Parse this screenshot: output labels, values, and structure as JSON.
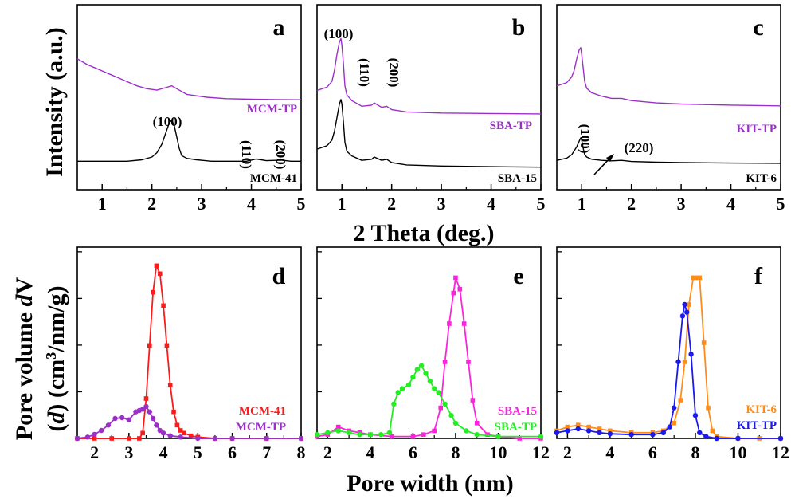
{
  "figure": {
    "y_title_top": "Intensity (a.u.)",
    "x_title_top": "2 Theta (deg.)",
    "y_title_bottom_line1_part1": "Pore volume ",
    "y_title_bottom_line1_part2": "d",
    "y_title_bottom_line1_part3": "V",
    "y_title_bottom_line2_part1": "(",
    "y_title_bottom_line2_part2": "d",
    "y_title_bottom_line2_part3": ") (cm",
    "y_title_bottom_line2_part4": "3",
    "y_title_bottom_line2_part5": "/nm/g)",
    "x_title_bottom": "Pore width (nm)"
  },
  "colors": {
    "black": "#000000",
    "purple": "#9b30c9",
    "red": "#ff1a1a",
    "magenta": "#ff22dd",
    "green": "#22ee22",
    "orange": "#ff8c1a",
    "blue": "#1a1aee"
  },
  "chart_data": [
    {
      "id": "a",
      "panel_label": "a",
      "type": "line",
      "xlim": [
        0.5,
        5
      ],
      "xticks": [
        "1",
        "2",
        "3",
        "4",
        "5"
      ],
      "series": [
        {
          "name": "MCM-TP",
          "color": "purple",
          "x": [
            0.5,
            0.7,
            0.9,
            1.1,
            1.3,
            1.5,
            1.7,
            1.9,
            2.1,
            2.3,
            2.4,
            2.5,
            2.7,
            2.9,
            3.1,
            3.5,
            4.0,
            4.5,
            5.0
          ],
          "y": [
            4.6,
            4.4,
            4.25,
            4.1,
            3.95,
            3.8,
            3.65,
            3.55,
            3.5,
            3.6,
            3.65,
            3.55,
            3.35,
            3.3,
            3.25,
            3.2,
            3.18,
            3.17,
            3.16
          ]
        },
        {
          "name": "MCM-41",
          "color": "black",
          "x": [
            0.5,
            1.0,
            1.5,
            1.8,
            2.0,
            2.1,
            2.2,
            2.3,
            2.35,
            2.4,
            2.45,
            2.5,
            2.55,
            2.6,
            2.7,
            2.9,
            3.2,
            3.6,
            3.9,
            4.1,
            4.3,
            4.6,
            4.8,
            5.0
          ],
          "y": [
            1.0,
            1.0,
            1.0,
            1.05,
            1.15,
            1.3,
            1.6,
            2.1,
            2.35,
            2.45,
            2.25,
            1.85,
            1.45,
            1.2,
            1.1,
            1.05,
            1.0,
            1.0,
            1.0,
            1.08,
            1.02,
            1.04,
            1.0,
            1.0
          ]
        }
      ],
      "ylim": [
        0,
        6.5
      ],
      "annotations": [
        "(100)",
        "(110)",
        "(200)"
      ]
    },
    {
      "id": "b",
      "panel_label": "b",
      "type": "line",
      "xlim": [
        0.5,
        5
      ],
      "xticks": [
        "1",
        "2",
        "3",
        "4",
        "5"
      ],
      "series": [
        {
          "name": "SBA-TP",
          "color": "purple",
          "x": [
            0.5,
            0.7,
            0.8,
            0.85,
            0.9,
            0.95,
            0.98,
            1.0,
            1.03,
            1.06,
            1.1,
            1.2,
            1.4,
            1.6,
            1.65,
            1.8,
            1.9,
            2.0,
            2.3,
            3.0,
            4.0,
            5.0
          ],
          "y": [
            4.4,
            4.55,
            4.8,
            5.3,
            6.0,
            6.55,
            6.7,
            6.4,
            5.6,
            4.6,
            4.2,
            3.95,
            3.7,
            3.75,
            3.85,
            3.65,
            3.7,
            3.55,
            3.45,
            3.4,
            3.38,
            3.36
          ]
        },
        {
          "name": "SBA-15",
          "color": "black",
          "x": [
            0.5,
            0.7,
            0.8,
            0.85,
            0.9,
            0.95,
            0.98,
            1.0,
            1.03,
            1.06,
            1.1,
            1.2,
            1.4,
            1.6,
            1.65,
            1.8,
            1.9,
            2.0,
            2.3,
            3.0,
            4.0,
            5.0
          ],
          "y": [
            1.8,
            1.95,
            2.2,
            2.6,
            3.2,
            3.8,
            4.0,
            3.8,
            3.0,
            2.1,
            1.7,
            1.5,
            1.3,
            1.35,
            1.45,
            1.3,
            1.35,
            1.2,
            1.1,
            1.05,
            1.02,
            1.0
          ]
        }
      ],
      "ylim": [
        0,
        8.2
      ],
      "annotations": [
        "(100)",
        "(110)",
        "(200)"
      ]
    },
    {
      "id": "c",
      "panel_label": "c",
      "type": "line",
      "xlim": [
        0.5,
        5
      ],
      "xticks": [
        "1",
        "2",
        "3",
        "4",
        "5"
      ],
      "series": [
        {
          "name": "KIT-TP",
          "color": "purple",
          "x": [
            0.5,
            0.7,
            0.8,
            0.85,
            0.9,
            0.95,
            0.98,
            1.0,
            1.03,
            1.06,
            1.1,
            1.2,
            1.4,
            1.6,
            1.8,
            2.0,
            2.5,
            3.0,
            4.0,
            5.0
          ],
          "y": [
            4.6,
            4.75,
            5.0,
            5.3,
            5.8,
            6.2,
            6.3,
            6.0,
            5.4,
            4.8,
            4.5,
            4.3,
            4.15,
            4.05,
            4.05,
            3.95,
            3.85,
            3.8,
            3.75,
            3.72
          ]
        },
        {
          "name": "KIT-6",
          "color": "black",
          "x": [
            0.5,
            0.7,
            0.8,
            0.9,
            0.95,
            0.98,
            1.0,
            1.03,
            1.06,
            1.1,
            1.2,
            1.4,
            1.6,
            1.8,
            2.0,
            2.5,
            3.0,
            4.0,
            5.0
          ],
          "y": [
            1.3,
            1.4,
            1.55,
            1.9,
            2.15,
            2.3,
            2.2,
            1.85,
            1.55,
            1.45,
            1.35,
            1.3,
            1.28,
            1.3,
            1.25,
            1.22,
            1.2,
            1.18,
            1.17
          ]
        }
      ],
      "ylim": [
        0,
        8.2
      ],
      "annotations": [
        "(100)",
        "(220)"
      ]
    },
    {
      "id": "d",
      "panel_label": "d",
      "type": "line",
      "xlim": [
        1.5,
        8
      ],
      "xticks": [
        "2",
        "3",
        "4",
        "5",
        "6",
        "7",
        "8"
      ],
      "series": [
        {
          "name": "MCM-41",
          "color": "red",
          "x": [
            1.5,
            2.0,
            2.5,
            3.0,
            3.3,
            3.4,
            3.5,
            3.6,
            3.7,
            3.8,
            3.9,
            4.0,
            4.1,
            4.2,
            4.3,
            4.4,
            4.5,
            4.6,
            4.8,
            5.0,
            5.5,
            6.0,
            7.0,
            8.0
          ],
          "y": [
            0,
            0,
            0,
            0,
            0,
            0.2,
            1.5,
            3.5,
            5.5,
            6.5,
            6.2,
            5.0,
            3.5,
            2.0,
            1.0,
            0.5,
            0.3,
            0.2,
            0.1,
            0.05,
            0,
            0,
            0,
            0
          ]
        },
        {
          "name": "MCM-TP",
          "color": "purple",
          "x": [
            1.5,
            1.8,
            2.0,
            2.2,
            2.4,
            2.6,
            2.8,
            3.0,
            3.2,
            3.3,
            3.4,
            3.5,
            3.6,
            3.7,
            3.8,
            3.9,
            4.0,
            4.2,
            4.5,
            5.0,
            5.5,
            6.0,
            7.0,
            8.0
          ],
          "y": [
            0,
            0.05,
            0.15,
            0.3,
            0.5,
            0.75,
            0.78,
            0.7,
            1.0,
            1.05,
            1.1,
            1.2,
            1.0,
            0.75,
            0.5,
            0.3,
            0.2,
            0.1,
            0.05,
            0,
            0,
            0,
            0,
            0
          ]
        }
      ],
      "ylim": [
        0,
        7.2
      ]
    },
    {
      "id": "e",
      "panel_label": "e",
      "type": "line",
      "xlim": [
        1.5,
        12
      ],
      "xticks": [
        "2",
        "4",
        "6",
        "8",
        "10",
        "12"
      ],
      "series": [
        {
          "name": "SBA-15",
          "color": "magenta",
          "x": [
            1.5,
            2.0,
            2.5,
            3.0,
            3.5,
            4.0,
            5.0,
            6.0,
            6.5,
            7.0,
            7.3,
            7.5,
            7.7,
            7.9,
            8.0,
            8.2,
            8.4,
            8.6,
            8.8,
            9.0,
            9.5,
            10.0,
            11.0,
            12.0
          ],
          "y": [
            0.05,
            0.1,
            0.3,
            0.2,
            0.15,
            0.1,
            0.05,
            0.05,
            0.1,
            0.2,
            0.8,
            2.0,
            3.0,
            3.8,
            4.2,
            3.9,
            3.0,
            2.0,
            1.0,
            0.4,
            0.1,
            0.05,
            0,
            0
          ]
        },
        {
          "name": "SBA-TP",
          "color": "green",
          "x": [
            1.5,
            2.0,
            2.5,
            3.0,
            3.5,
            4.0,
            4.5,
            4.9,
            5.1,
            5.3,
            5.5,
            5.8,
            6.0,
            6.2,
            6.4,
            6.6,
            6.8,
            7.0,
            7.2,
            7.5,
            7.8,
            8.0,
            8.5,
            9.0,
            10.0,
            12.0
          ],
          "y": [
            0.1,
            0.15,
            0.2,
            0.15,
            0.1,
            0.1,
            0.1,
            0.15,
            0.9,
            1.2,
            1.3,
            1.4,
            1.6,
            1.8,
            1.9,
            1.7,
            1.5,
            1.3,
            1.2,
            0.9,
            0.6,
            0.4,
            0.2,
            0.1,
            0.05,
            0.05
          ]
        }
      ],
      "ylim": [
        0,
        5.0
      ]
    },
    {
      "id": "f",
      "panel_label": "f",
      "type": "line",
      "xlim": [
        1.5,
        12
      ],
      "xticks": [
        "2",
        "4",
        "6",
        "8",
        "10",
        "12"
      ],
      "series": [
        {
          "name": "KIT-6",
          "color": "orange",
          "x": [
            1.5,
            2.0,
            2.5,
            3.0,
            3.5,
            4.0,
            5.0,
            6.0,
            6.5,
            7.0,
            7.3,
            7.5,
            7.7,
            7.9,
            8.0,
            8.2,
            8.4,
            8.6,
            8.8,
            9.0,
            10.0,
            11.0,
            12.0
          ],
          "y": [
            0.2,
            0.3,
            0.35,
            0.3,
            0.25,
            0.2,
            0.15,
            0.15,
            0.2,
            0.4,
            1.0,
            2.0,
            3.5,
            4.2,
            4.2,
            4.2,
            2.5,
            0.8,
            0.2,
            0.05,
            0,
            0,
            0
          ]
        },
        {
          "name": "KIT-TP",
          "color": "blue",
          "x": [
            1.5,
            2.0,
            2.5,
            3.0,
            3.5,
            4.0,
            5.0,
            6.0,
            6.5,
            6.8,
            7.0,
            7.2,
            7.4,
            7.5,
            7.6,
            7.8,
            8.0,
            8.2,
            8.5,
            9.0,
            10.0,
            12.0
          ],
          "y": [
            0.15,
            0.2,
            0.25,
            0.2,
            0.15,
            0.12,
            0.1,
            0.1,
            0.15,
            0.3,
            0.8,
            2.0,
            3.2,
            3.5,
            3.3,
            2.2,
            0.6,
            0.15,
            0.05,
            0,
            0,
            0
          ]
        }
      ],
      "ylim": [
        0,
        5.0
      ]
    }
  ]
}
